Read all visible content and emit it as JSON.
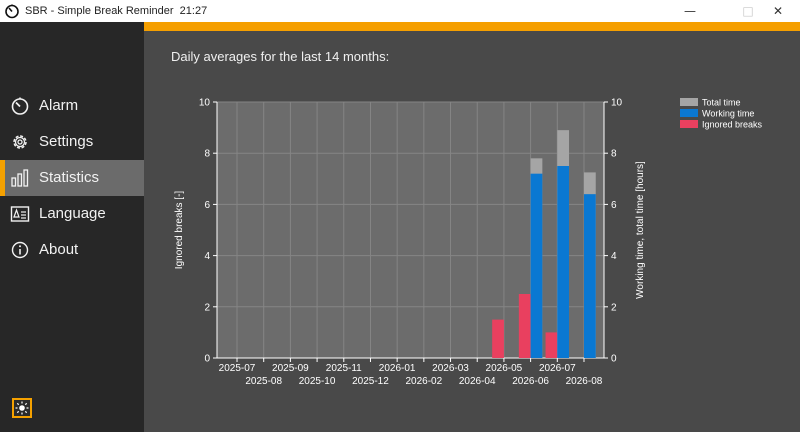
{
  "window": {
    "title": "SBR - Simple Break Reminder  21:27",
    "icon": "timer-icon"
  },
  "sidebar": {
    "items": [
      {
        "label": "Alarm",
        "icon": "timer-icon",
        "active": false
      },
      {
        "label": "Settings",
        "icon": "gear-icon",
        "active": false
      },
      {
        "label": "Statistics",
        "icon": "bar-chart-icon",
        "active": true
      },
      {
        "label": "Language",
        "icon": "language-card-icon",
        "active": false
      },
      {
        "label": "About",
        "icon": "info-icon",
        "active": false
      }
    ],
    "theme_toggle_icon": "sun-icon"
  },
  "main": {
    "heading": "Daily averages for the last 14 months:"
  },
  "colors": {
    "accent": "#f59f00",
    "total": "#a5a5a5",
    "working": "#0a78d2",
    "ignored": "#e9405f"
  },
  "chart_data": {
    "type": "bar",
    "categories": [
      "2025-07",
      "2025-08",
      "2025-09",
      "2025-10",
      "2025-11",
      "2025-12",
      "2026-01",
      "2026-02",
      "2026-03",
      "2026-04",
      "2026-05",
      "2026-06",
      "2026-07",
      "2026-08"
    ],
    "series": [
      {
        "name": "Total time",
        "axis": "right",
        "values": [
          null,
          null,
          null,
          null,
          null,
          null,
          null,
          null,
          null,
          null,
          null,
          7.8,
          8.9,
          7.25
        ]
      },
      {
        "name": "Working time",
        "axis": "right",
        "values": [
          null,
          null,
          null,
          null,
          null,
          null,
          null,
          null,
          null,
          null,
          null,
          7.2,
          7.5,
          6.4
        ]
      },
      {
        "name": "Ignored breaks",
        "axis": "left",
        "values": [
          null,
          null,
          null,
          null,
          null,
          null,
          null,
          null,
          null,
          null,
          1.5,
          2.5,
          1.0,
          null
        ]
      }
    ],
    "yticks": [
      "0",
      "2",
      "4",
      "6",
      "8",
      "10"
    ],
    "ylim": [
      0,
      10
    ],
    "ylabel_left": "Ignored breaks [-]",
    "ylabel_right": "Working time, total time [hours]",
    "legend_position": "top-right",
    "grid": true
  }
}
